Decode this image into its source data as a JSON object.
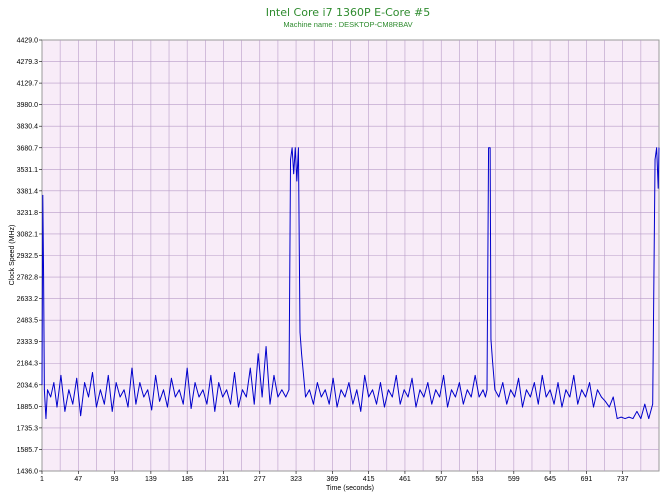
{
  "chart_data": {
    "type": "line",
    "title": "Intel Core i7 1360P E-Core #5",
    "subtitle": "Machine name : DESKTOP-CM8RBAV",
    "xlabel": "Time (seconds)",
    "ylabel": "Clock Speed (MHz)",
    "xlim": [
      1,
      783
    ],
    "ylim": [
      1436.0,
      4429.0
    ],
    "x_ticks": [
      "1",
      "47",
      "93",
      "139",
      "185",
      "231",
      "277",
      "323",
      "369",
      "415",
      "461",
      "507",
      "553",
      "599",
      "645",
      "691",
      "737"
    ],
    "y_ticks": [
      "4429.0",
      "4279.3",
      "4129.7",
      "3980.0",
      "3830.4",
      "3680.7",
      "3531.1",
      "3381.4",
      "3231.8",
      "3082.1",
      "2932.5",
      "2782.8",
      "2633.2",
      "2483.5",
      "2333.9",
      "2184.3",
      "2034.6",
      "1885.0",
      "1735.3",
      "1585.7",
      "1436.0"
    ],
    "grid": true,
    "series": [
      {
        "color": "#0000cc",
        "x": [
          1,
          2,
          3,
          4,
          5,
          6,
          8,
          12,
          16,
          20,
          25,
          30,
          35,
          40,
          45,
          50,
          55,
          60,
          65,
          70,
          75,
          80,
          85,
          90,
          95,
          100,
          105,
          110,
          115,
          120,
          125,
          130,
          135,
          140,
          145,
          150,
          155,
          160,
          165,
          170,
          175,
          180,
          185,
          190,
          195,
          200,
          205,
          210,
          215,
          220,
          225,
          230,
          235,
          240,
          245,
          250,
          255,
          260,
          265,
          270,
          275,
          280,
          285,
          290,
          295,
          300,
          305,
          310,
          314,
          316,
          318,
          320,
          322,
          324,
          326,
          328,
          330,
          335,
          340,
          345,
          350,
          355,
          360,
          365,
          370,
          375,
          380,
          385,
          390,
          395,
          400,
          405,
          410,
          415,
          420,
          425,
          430,
          435,
          440,
          445,
          450,
          455,
          460,
          465,
          470,
          475,
          480,
          485,
          490,
          495,
          500,
          505,
          510,
          515,
          520,
          525,
          530,
          535,
          540,
          545,
          550,
          555,
          560,
          563,
          565,
          567,
          568,
          569,
          570,
          572,
          575,
          580,
          585,
          590,
          595,
          600,
          605,
          610,
          615,
          620,
          625,
          630,
          635,
          640,
          645,
          650,
          655,
          660,
          665,
          670,
          675,
          680,
          685,
          690,
          695,
          700,
          705,
          710,
          715,
          720,
          725,
          730,
          735,
          740,
          745,
          750,
          755,
          760,
          765,
          770,
          775,
          778,
          780,
          782,
          783
        ],
        "y": [
          2034.6,
          3350.0,
          2800.0,
          2000.0,
          1900.0,
          1800.0,
          2000.0,
          1950.0,
          2050.0,
          1880.0,
          2100.0,
          1850.0,
          2000.0,
          1900.0,
          2080.0,
          1820.0,
          2050.0,
          1950.0,
          2120.0,
          1880.0,
          2000.0,
          1900.0,
          2100.0,
          1850.0,
          2050.0,
          1950.0,
          2000.0,
          1880.0,
          2150.0,
          1900.0,
          2050.0,
          1950.0,
          2000.0,
          1860.0,
          2100.0,
          1920.0,
          2000.0,
          1880.0,
          2080.0,
          1950.0,
          2000.0,
          1900.0,
          2150.0,
          1870.0,
          2050.0,
          1950.0,
          2000.0,
          1900.0,
          2100.0,
          1850.0,
          2050.0,
          1950.0,
          2000.0,
          1900.0,
          2120.0,
          1880.0,
          2000.0,
          1950.0,
          2150.0,
          1900.0,
          2250.0,
          1950.0,
          2300.0,
          1900.0,
          2100.0,
          1950.0,
          2000.0,
          1950.0,
          2000.0,
          3600.0,
          3680.7,
          3500.0,
          3680.7,
          3450.0,
          3680.7,
          2400.0,
          2250.0,
          1950.0,
          2000.0,
          1900.0,
          2050.0,
          1950.0,
          2000.0,
          1900.0,
          2080.0,
          1880.0,
          2000.0,
          1950.0,
          2050.0,
          1900.0,
          2000.0,
          1850.0,
          2100.0,
          1950.0,
          2000.0,
          1900.0,
          2050.0,
          1880.0,
          2000.0,
          1950.0,
          2100.0,
          1900.0,
          2000.0,
          1950.0,
          2080.0,
          1880.0,
          2000.0,
          1950.0,
          2050.0,
          1900.0,
          2000.0,
          1950.0,
          2100.0,
          1880.0,
          2000.0,
          1950.0,
          2050.0,
          1900.0,
          2000.0,
          1950.0,
          2100.0,
          1950.0,
          2000.0,
          1950.0,
          2000.0,
          3680.7,
          3680.7,
          3680.7,
          2350.0,
          2200.0,
          2000.0,
          1950.0,
          2050.0,
          1900.0,
          2000.0,
          1950.0,
          2080.0,
          1880.0,
          2000.0,
          1950.0,
          2050.0,
          1900.0,
          2100.0,
          1950.0,
          2000.0,
          1900.0,
          2050.0,
          1880.0,
          2000.0,
          1950.0,
          2100.0,
          1900.0,
          2000.0,
          1950.0,
          2050.0,
          1880.0,
          2000.0,
          1950.0,
          1920.0,
          1880.0,
          1950.0,
          1800.0,
          1810.0,
          1800.0,
          1810.0,
          1800.0,
          1850.0,
          1800.0,
          1900.0,
          1800.0,
          1900.0,
          3600.0,
          3680.7,
          3400.0,
          3680.7
        ]
      }
    ]
  }
}
